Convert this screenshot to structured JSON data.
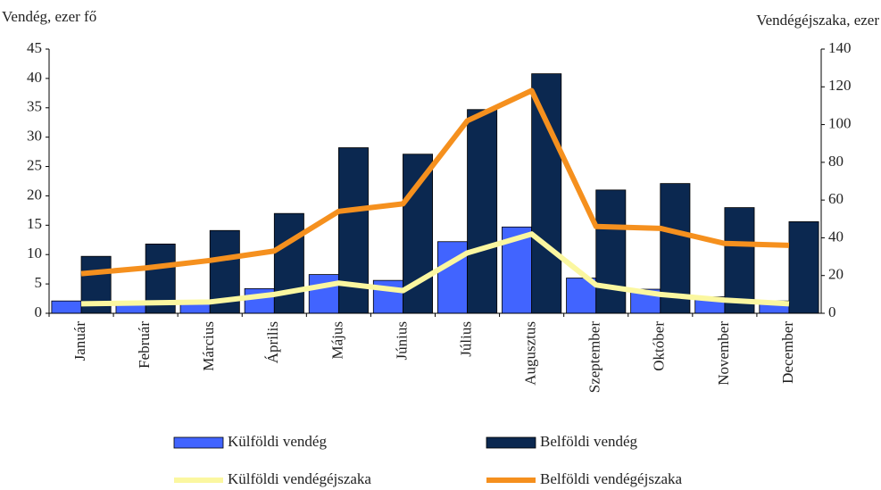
{
  "chart_data": {
    "type": "bar_line",
    "y_label": "Vendég, ezer fő",
    "y2_label": "Vendégéjszaka, ezer",
    "categories": [
      "Január",
      "Február",
      "Március",
      "Április",
      "Május",
      "Június",
      "Július",
      "Augusztus",
      "Szeptember",
      "Október",
      "November",
      "December"
    ],
    "series": [
      {
        "name": "Külföldi vendég",
        "type": "bar",
        "color": "#4164ff",
        "values": [
          2.1,
          2.0,
          2.2,
          4.2,
          6.6,
          5.6,
          12.2,
          14.7,
          6.0,
          4.1,
          2.8,
          2.1
        ]
      },
      {
        "name": "Belföldi vendég",
        "type": "bar",
        "color": "#0b2850",
        "values": [
          9.7,
          11.8,
          14.1,
          17.0,
          28.2,
          27.1,
          34.7,
          40.8,
          21.0,
          22.1,
          18.0,
          15.6
        ]
      },
      {
        "name": "Külföldi vendégéjszaka",
        "type": "line",
        "axis": "y2",
        "color": "#fbf7a0",
        "values": [
          5,
          5.5,
          6,
          10,
          16,
          12,
          32,
          42,
          15,
          10,
          7,
          5
        ]
      },
      {
        "name": "Belföldi vendégéjszaka",
        "type": "line",
        "axis": "y2",
        "color": "#f5901e",
        "values": [
          21,
          24,
          28,
          33,
          54,
          58,
          102,
          118,
          46,
          45,
          37,
          36
        ]
      }
    ],
    "ylim": [
      0,
      45
    ],
    "yticks": [
      0,
      5,
      10,
      15,
      20,
      25,
      30,
      35,
      40,
      45
    ],
    "y2lim": [
      0,
      140
    ],
    "y2ticks": [
      0,
      20,
      40,
      60,
      80,
      100,
      120,
      140
    ]
  }
}
